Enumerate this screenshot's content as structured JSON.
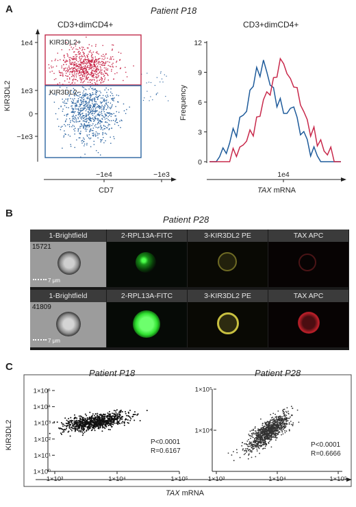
{
  "panels": {
    "A": {
      "letter": "A",
      "title": "Patient P18",
      "left_title": "CD3+dimCD4+",
      "right_title": "CD3+dimCD4+",
      "gate_upper": "KIR3DL2+",
      "gate_lower": "KIR3DL2−",
      "left_ylabel": "KIR3DL2",
      "left_xlabel": "CD7",
      "left_yticks": [
        "1e4",
        "1e3",
        "0",
        "−1e3"
      ],
      "left_xticks": [
        "−1e4",
        "−1e3"
      ],
      "right_ylabel": "Frequency",
      "right_xlabel_italic": "TAX",
      "right_xlabel_rest": " mRNA",
      "right_yticks": [
        "12",
        "9",
        "6",
        "3",
        "0"
      ],
      "right_xticks": [
        "1e4"
      ]
    },
    "B": {
      "letter": "B",
      "title": "Patient P28",
      "channels": [
        "1-Brightfield",
        "2-RPL13A-FITC",
        "3-KIR3DL2 PE",
        "TAX APC"
      ],
      "rows": [
        {
          "cell_id": "15721",
          "scale": "7 μm"
        },
        {
          "cell_id": "41809",
          "scale": "7 μm"
        }
      ],
      "colors": {
        "fitc": "#2ee82e",
        "pe": "#b8b030",
        "apc": "#c0202a"
      }
    },
    "C": {
      "letter": "C",
      "left_title": "Patient P18",
      "right_title": "Patient P28",
      "ylabel": "KIR3DL2",
      "xlabel_italic": "TAX",
      "xlabel_rest": " mRNA",
      "left_stats": {
        "p": "P<0.0001",
        "r": "R=0.6167"
      },
      "right_stats": {
        "p": "P<0.0001",
        "r": "R=0.6666"
      }
    }
  },
  "chart_data": [
    {
      "type": "scatter",
      "title": "CD3+dimCD4+",
      "xlabel": "CD7",
      "ylabel": "KIR3DL2",
      "xticks": [
        "−1e4",
        "−1e3"
      ],
      "yticks": [
        "1e4",
        "1e3",
        "0",
        "−1e3"
      ],
      "gates": [
        "KIR3DL2+",
        "KIR3DL2−"
      ],
      "colors": {
        "positive": "#c8284a",
        "negative": "#2a63a0"
      }
    },
    {
      "type": "line",
      "title": "CD3+dimCD4+",
      "xlabel": "TAX mRNA",
      "ylabel": "Frequency",
      "ylim": [
        0,
        12
      ],
      "series": [
        {
          "color": "#1d5a9a",
          "values": [
            0,
            0,
            0,
            1,
            1,
            1,
            2,
            3,
            3,
            4,
            5,
            5,
            7,
            8,
            9,
            9,
            10,
            9,
            8,
            7,
            6,
            6,
            5,
            5,
            5,
            6,
            4,
            3,
            3,
            2,
            1,
            1,
            1,
            0,
            0,
            0,
            0,
            0,
            0,
            0
          ]
        },
        {
          "color": "#c8284a",
          "values": [
            0,
            0,
            0,
            0,
            0,
            0,
            0,
            1,
            1,
            1,
            2,
            2,
            3,
            3,
            4,
            5,
            6,
            7,
            7,
            8,
            9,
            10,
            10,
            9,
            8,
            8,
            7,
            6,
            5,
            4,
            3,
            3,
            2,
            2,
            1,
            1,
            1,
            0,
            0,
            0
          ]
        }
      ]
    },
    {
      "type": "scatter",
      "title": "Patient P18",
      "xlabel": "TAX mRNA",
      "ylabel": "KIR3DL2",
      "log_x": true,
      "log_y": true,
      "xlim": [
        1000,
        100000
      ],
      "ylim": [
        1,
        100000
      ],
      "xticks": [
        "1×10^3",
        "1×10^4",
        "1×10^5"
      ],
      "yticks": [
        "1×10^0",
        "1×10^1",
        "1×10^2",
        "1×10^3",
        "1×10^4",
        "1×10^5"
      ],
      "color": "#111111"
    },
    {
      "type": "scatter",
      "title": "Patient P28",
      "xlabel": "TAX mRNA",
      "log_x": true,
      "log_y": true,
      "xlim": [
        1000,
        100000
      ],
      "ylim": [
        1000,
        100000
      ],
      "xticks": [
        "1×10^3",
        "1×10^4",
        "1×10^5"
      ],
      "yticks": [
        "1×10^4",
        "1×10^5"
      ],
      "color": "#333333"
    }
  ]
}
